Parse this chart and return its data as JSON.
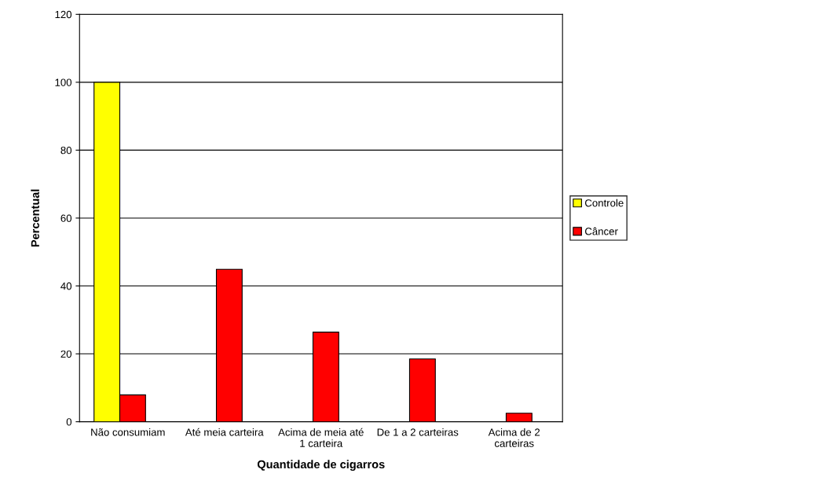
{
  "chart_data": {
    "type": "bar",
    "xlabel": "Quantidade de cigarros",
    "ylabel": "Percentual",
    "categories": [
      "Não consumiam",
      "Até meia carteira",
      "Acima de meia até\n1 carteira",
      "De 1 a 2 carteiras",
      "Acima de 2\ncarteiras"
    ],
    "series": [
      {
        "name": "Controle",
        "color": "#ffff00",
        "values": [
          100,
          null,
          null,
          null,
          null
        ]
      },
      {
        "name": "Câncer",
        "color": "#ff0000",
        "values": [
          7.9,
          44.9,
          26.4,
          18.5,
          2.5
        ]
      }
    ],
    "ylim": [
      0,
      120
    ],
    "yticks": [
      0,
      20,
      40,
      60,
      80,
      100,
      120
    ],
    "grid": "y",
    "legend": "right"
  }
}
